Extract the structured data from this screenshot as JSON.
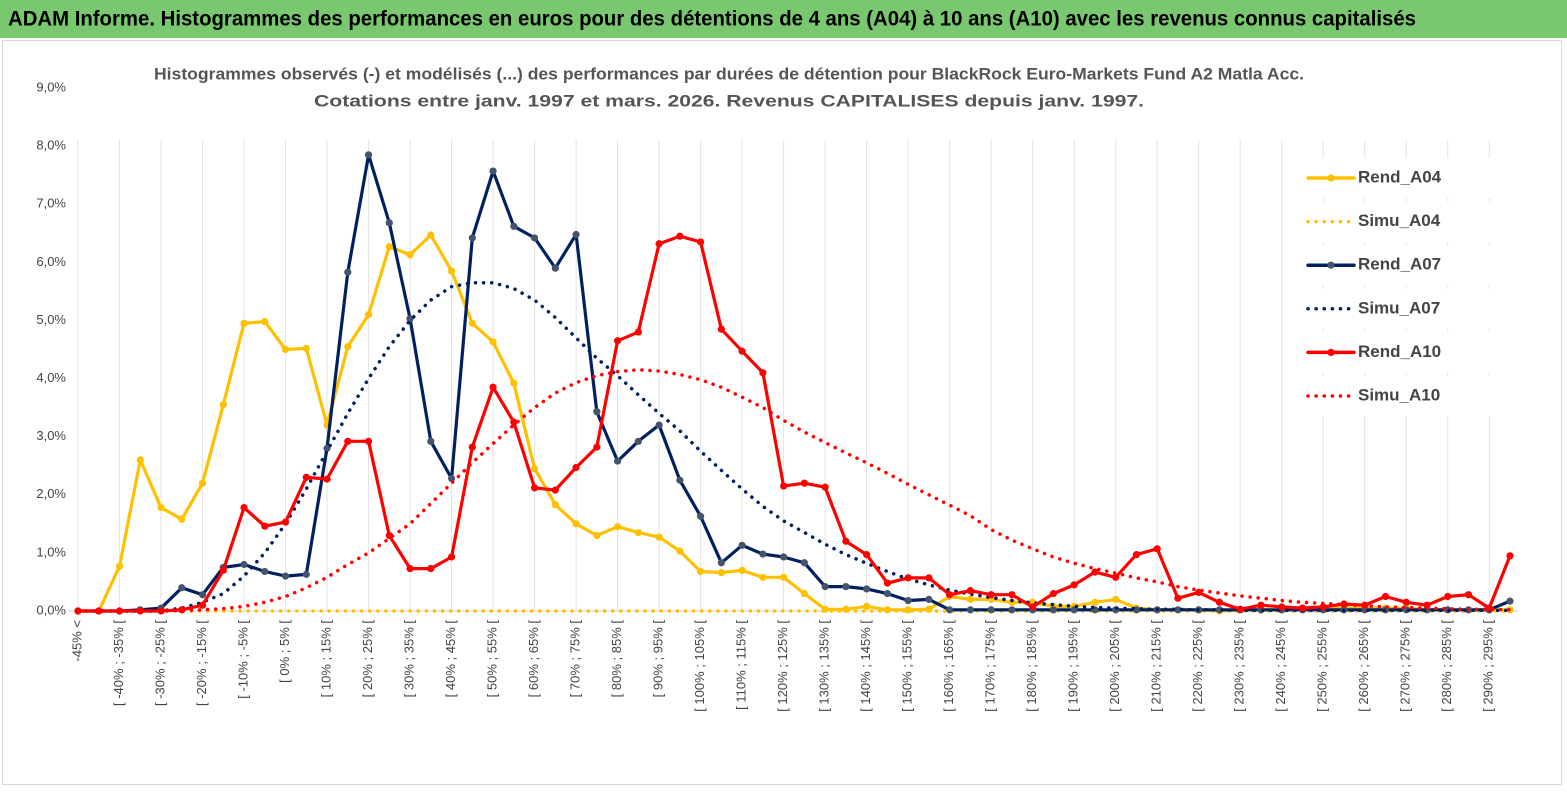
{
  "header": {
    "title": "ADAM Informe. Histogrammes des performances en euros pour des détentions de 4 ans (A04) à 10 ans (A10) avec les revenus connus capitalisés"
  },
  "chart_data": {
    "type": "line",
    "title": "Histogrammes observés (-) et modélisés (...) des performances par durées de détention pour BlackRock Euro-Markets Fund A2 Matla Acc.",
    "subtitle": "Cotations entre janv. 1997 et mars. 2026. Revenus CAPITALISES depuis janv. 1997.",
    "categories": [
      "-45% <",
      null,
      "[ -40% ; -35% [",
      null,
      "[ -30% ; -25% [",
      null,
      "[ -20% ; -15% [",
      null,
      "[ -10% ; -5% [",
      null,
      "[ 0% ; 5% [",
      null,
      "[ 10% ; 15% [",
      null,
      "[ 20% ; 25% [",
      null,
      "[ 30% ; 35% [",
      null,
      "[ 40% ; 45% [",
      null,
      "[ 50% ; 55% [",
      null,
      "[ 60% ; 65% [",
      null,
      "[ 70% ; 75% [",
      null,
      "[ 80% ; 85% [",
      null,
      "[ 90% ; 95% [",
      null,
      "[ 100% ; 105% [",
      null,
      "[ 110% ; 115% [",
      null,
      "[ 120% ; 125% [",
      null,
      "[ 130% ; 135% [",
      null,
      "[ 140% ; 145% [",
      null,
      "[ 150% ; 155% [",
      null,
      "[ 160% ; 165% [",
      null,
      "[ 170% ; 175% [",
      null,
      "[ 180% ; 185% [",
      null,
      "[ 190% ; 195% [",
      null,
      "[ 200% ; 205% [",
      null,
      "[ 210% ; 215% [",
      null,
      "[ 220% ; 225% [",
      null,
      "[ 230% ; 235% [",
      null,
      "[ 240% ; 245% [",
      null,
      "[ 250% ; 255% [",
      null,
      "[ 260% ; 265% [",
      null,
      "[ 270% ; 275% [",
      null,
      "[ 280% ; 285% [",
      null,
      "[ 290% ; 295% [",
      null
    ],
    "ylim": [
      0,
      9
    ],
    "yticks": [
      {
        "value": 0,
        "label": "0,0%"
      },
      {
        "value": 1,
        "label": "1,0%"
      },
      {
        "value": 2,
        "label": "2,0%"
      },
      {
        "value": 3,
        "label": "3,0%"
      },
      {
        "value": 4,
        "label": "4,0%"
      },
      {
        "value": 5,
        "label": "5,0%"
      },
      {
        "value": 6,
        "label": "6,0%"
      },
      {
        "value": 7,
        "label": "7,0%"
      },
      {
        "value": 8,
        "label": "8,0%"
      },
      {
        "value": 9,
        "label": "9,0%"
      }
    ],
    "grid": "x",
    "legend": "right",
    "series": [
      {
        "name": "Rend_A04",
        "color": "#ffc000",
        "line_style": "solid",
        "markers": true,
        "values": [
          0,
          0,
          0.77,
          2.6,
          1.78,
          1.58,
          2.2,
          3.55,
          4.95,
          4.98,
          4.5,
          4.52,
          3.2,
          4.55,
          5.1,
          6.27,
          6.13,
          6.47,
          5.85,
          4.95,
          4.63,
          3.92,
          2.45,
          1.83,
          1.5,
          1.3,
          1.45,
          1.35,
          1.27,
          1.03,
          0.68,
          0.66,
          0.7,
          0.58,
          0.58,
          0.3,
          0.03,
          0.03,
          0.08,
          0.02,
          0.02,
          0.03,
          0.25,
          0.2,
          0.2,
          0.15,
          0.15,
          0.08,
          0.08,
          0.15,
          0.2,
          0.05,
          0.02,
          0.02,
          0.02,
          0,
          0.02,
          0.02,
          0.02,
          0.05,
          0.05,
          0.05,
          0.05,
          0.05,
          0.05,
          0.02,
          0.02,
          0.02,
          0.02,
          0.02
        ]
      },
      {
        "name": "Simu_A04",
        "color": "#ffc000",
        "line_style": "dotted",
        "markers": false,
        "values": [
          0,
          0,
          0,
          0,
          0,
          0,
          0,
          0,
          0,
          0,
          0,
          0,
          0,
          0,
          0,
          0,
          0,
          0,
          0,
          0,
          0,
          0,
          0,
          0,
          0,
          0,
          0,
          0,
          0,
          0,
          0,
          0,
          0,
          0,
          0,
          0,
          0,
          0,
          0,
          0,
          0,
          0,
          0,
          0,
          0,
          0,
          0,
          0,
          0,
          0,
          0,
          0,
          0,
          0,
          0,
          0,
          0,
          0,
          0,
          0,
          0,
          0,
          0,
          0,
          0,
          0,
          0,
          0,
          0,
          0
        ]
      },
      {
        "name": "Rend_A07",
        "color": "#002060",
        "line_style": "solid",
        "markers": true,
        "values": [
          0,
          0,
          0,
          0.02,
          0.05,
          0.4,
          0.28,
          0.75,
          0.8,
          0.68,
          0.6,
          0.63,
          2.8,
          5.83,
          7.85,
          6.68,
          5.03,
          2.92,
          2.28,
          6.42,
          7.57,
          6.62,
          6.42,
          5.9,
          6.48,
          3.43,
          2.58,
          2.92,
          3.2,
          2.25,
          1.63,
          0.83,
          1.13,
          0.98,
          0.93,
          0.83,
          0.42,
          0.42,
          0.38,
          0.3,
          0.18,
          0.2,
          0.02,
          0.02,
          0.02,
          0.02,
          0.02,
          0.02,
          0.02,
          0.02,
          0.02,
          0.02,
          0.02,
          0.02,
          0.02,
          0.02,
          0.02,
          0.02,
          0.02,
          0.02,
          0.02,
          0.02,
          0.02,
          0.02,
          0.02,
          0.02,
          0.02,
          0.02,
          0.02,
          0.17
        ]
      },
      {
        "name": "Simu_A07",
        "color": "#002060",
        "line_style": "dotted",
        "markers": false,
        "values": [
          0,
          0,
          0,
          0,
          0,
          0.05,
          0.15,
          0.3,
          0.6,
          1.0,
          1.5,
          2.1,
          2.75,
          3.4,
          4.0,
          4.55,
          5.0,
          5.35,
          5.58,
          5.65,
          5.65,
          5.55,
          5.35,
          5.05,
          4.7,
          4.35,
          4.05,
          3.72,
          3.4,
          3.1,
          2.75,
          2.42,
          2.1,
          1.8,
          1.55,
          1.35,
          1.15,
          0.97,
          0.82,
          0.68,
          0.55,
          0.45,
          0.36,
          0.29,
          0.23,
          0.18,
          0.14,
          0.11,
          0.08,
          0.06,
          0.05,
          0.04,
          0.03,
          0.03,
          0.02,
          0.02,
          0.01,
          0.01,
          0.01,
          0.01,
          0.01,
          0.01,
          0.01,
          0.01,
          0.01,
          0.01,
          0.01,
          0.01,
          0.01,
          0.01
        ]
      },
      {
        "name": "Rend_A10",
        "color": "#ff0000",
        "line_style": "solid",
        "markers": true,
        "values": [
          0,
          0,
          0,
          0,
          0,
          0.02,
          0.1,
          0.7,
          1.78,
          1.46,
          1.53,
          2.3,
          2.27,
          2.92,
          2.92,
          1.3,
          0.73,
          0.73,
          0.93,
          2.82,
          3.85,
          3.25,
          2.12,
          2.08,
          2.47,
          2.82,
          4.65,
          4.8,
          6.32,
          6.45,
          6.35,
          4.85,
          4.47,
          4.1,
          2.15,
          2.2,
          2.13,
          1.2,
          0.97,
          0.48,
          0.57,
          0.57,
          0.28,
          0.35,
          0.28,
          0.28,
          0.07,
          0.3,
          0.45,
          0.67,
          0.58,
          0.97,
          1.07,
          0.22,
          0.32,
          0.15,
          0.03,
          0.1,
          0.07,
          0.05,
          0.07,
          0.12,
          0.1,
          0.25,
          0.15,
          0.1,
          0.25,
          0.28,
          0.05,
          0.95
        ]
      },
      {
        "name": "Simu_A10",
        "color": "#ff0000",
        "line_style": "dotted",
        "markers": false,
        "values": [
          0,
          0,
          0,
          0,
          0,
          0.01,
          0.02,
          0.04,
          0.08,
          0.15,
          0.25,
          0.4,
          0.58,
          0.8,
          1.0,
          1.25,
          1.5,
          1.85,
          2.2,
          2.55,
          2.88,
          3.2,
          3.5,
          3.75,
          3.93,
          4.05,
          4.12,
          4.15,
          4.13,
          4.07,
          3.98,
          3.85,
          3.68,
          3.5,
          3.28,
          3.08,
          2.9,
          2.72,
          2.55,
          2.37,
          2.18,
          2.0,
          1.82,
          1.64,
          1.4,
          1.22,
          1.07,
          0.93,
          0.82,
          0.73,
          0.65,
          0.57,
          0.5,
          0.42,
          0.36,
          0.31,
          0.26,
          0.22,
          0.18,
          0.15,
          0.13,
          0.11,
          0.09,
          0.07,
          0.06,
          0.05,
          0.04,
          0.03,
          0.03,
          0.02
        ]
      }
    ]
  }
}
